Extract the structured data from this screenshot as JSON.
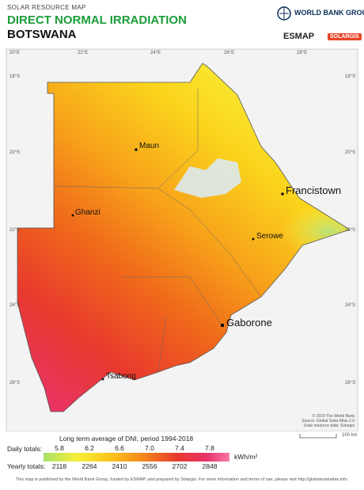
{
  "header": {
    "supertitle": "SOLAR RESOURCE MAP",
    "title": "DIRECT NORMAL IRRADIATION",
    "country": "BOTSWANA",
    "logos": [
      "WORLD BANK GROUP",
      "ESMAP",
      "SOLARGIS"
    ]
  },
  "map": {
    "lon_labels": [
      "20°E",
      "22°E",
      "24°E",
      "26°E",
      "28°E"
    ],
    "lat_labels": [
      "18°S",
      "20°S",
      "22°S",
      "24°S",
      "26°S"
    ],
    "cities": [
      "Maun",
      "Ghanzi",
      "Francistown",
      "Serowe",
      "Gaborone",
      "Tsabong"
    ],
    "credits": [
      "© 2019 The World Bank",
      "Source: Global Solar Atlas 2.0",
      "Solar resource data: Solargis"
    ],
    "scale": "100 km"
  },
  "legend": {
    "title": "Long term average of DNI, period 1994-2018",
    "daily_label": "Daily totals:",
    "daily": [
      "5.8",
      "6.2",
      "6.6",
      "7.0",
      "7.4",
      "7.8"
    ],
    "yearly_label": "Yearly totals:",
    "yearly": [
      "2118",
      "2264",
      "2410",
      "2556",
      "2702",
      "2848"
    ],
    "unit": "kWh/m²"
  },
  "footer": "This map is published by the World Bank Group, funded by ESMAP, and prepared by Solargis. For more information and terms of use, please visit http://globalsolaratlas.info."
}
